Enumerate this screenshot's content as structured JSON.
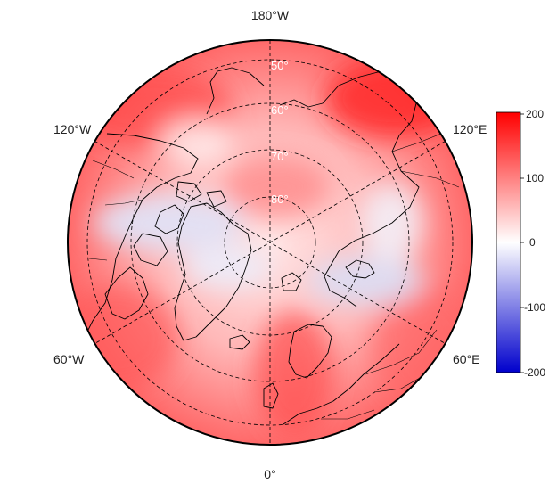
{
  "map": {
    "projection": "north-polar-stereographic",
    "lon_labels": {
      "top": "180°W",
      "bottom": "0°",
      "upper_left": "120°W",
      "upper_right": "120°E",
      "lower_left": "60°W",
      "lower_right": "60°E"
    },
    "lat_labels": [
      "50°",
      "60°",
      "70°",
      "80°"
    ],
    "colors": {
      "positive": "#ff0000",
      "neutral": "#ffffff",
      "negative": "#0000cc",
      "coast": "#000000"
    }
  },
  "colorbar": {
    "ticks": [
      "200",
      "100",
      "0",
      "-100",
      "-200"
    ],
    "min": -200,
    "max": 200
  }
}
